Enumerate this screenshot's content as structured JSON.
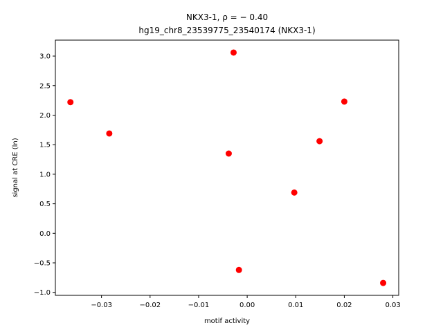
{
  "chart_data": {
    "type": "scatter",
    "title_line1": "NKX3-1, ρ = − 0.40",
    "title_line2": "hg19_chr8_23539775_23540174 (NKX3-1)",
    "xlabel": "motif activity",
    "ylabel": "signal at CRE (ln)",
    "xlim": [
      -0.0395,
      0.0312
    ],
    "ylim": [
      -1.05,
      3.27
    ],
    "xticks": [
      -0.03,
      -0.02,
      -0.01,
      0.0,
      0.01,
      0.02,
      0.03
    ],
    "xtick_labels": [
      "−0.03",
      "−0.02",
      "−0.01",
      "0.00",
      "0.01",
      "0.02",
      "0.03"
    ],
    "yticks": [
      -1.0,
      -0.5,
      0.0,
      0.5,
      1.0,
      1.5,
      2.0,
      2.5,
      3.0
    ],
    "ytick_labels": [
      "−1.0",
      "−0.5",
      "0.0",
      "0.5",
      "1.0",
      "1.5",
      "2.0",
      "2.5",
      "3.0"
    ],
    "grid": false,
    "marker_color": "#ff0000",
    "points": [
      {
        "x": -0.0364,
        "y": 2.22
      },
      {
        "x": -0.0284,
        "y": 1.69
      },
      {
        "x": -0.0028,
        "y": 3.06
      },
      {
        "x": -0.0038,
        "y": 1.35
      },
      {
        "x": -0.0017,
        "y": -0.62
      },
      {
        "x": 0.0097,
        "y": 0.69
      },
      {
        "x": 0.0149,
        "y": 1.56
      },
      {
        "x": 0.02,
        "y": 2.23
      },
      {
        "x": 0.028,
        "y": -0.84
      }
    ]
  }
}
